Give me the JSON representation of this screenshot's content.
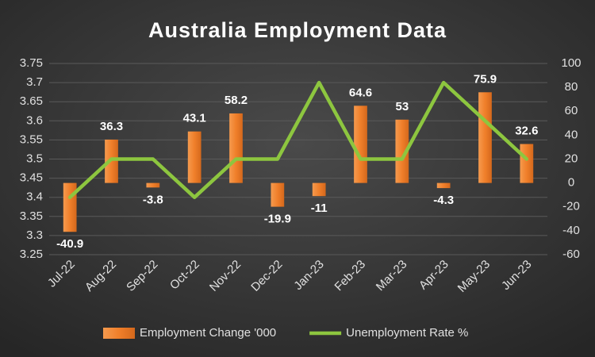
{
  "chart_data": {
    "type": "combo",
    "title": "Australia Employment Data",
    "categories": [
      "Jul-22",
      "Aug-22",
      "Sep-22",
      "Oct-22",
      "Nov-22",
      "Dec-22",
      "Jan-23",
      "Feb-23",
      "Mar-23",
      "Apr-23",
      "May-23",
      "Jun-23"
    ],
    "series": [
      {
        "name": "Employment Change '000",
        "type": "bar",
        "axis": "y2",
        "color": "#f07f2a",
        "values": [
          -40.9,
          36.3,
          -3.8,
          43.1,
          58.2,
          -19.9,
          -11,
          64.6,
          53,
          -4.3,
          75.9,
          32.6
        ]
      },
      {
        "name": "Unemployment Rate %",
        "type": "line",
        "axis": "y",
        "color": "#8dc63f",
        "values": [
          3.4,
          3.5,
          3.5,
          3.4,
          3.5,
          3.5,
          3.7,
          3.5,
          3.5,
          3.7,
          3.6,
          3.5
        ]
      }
    ],
    "ylim": [
      3.25,
      3.75
    ],
    "yticks": [
      3.25,
      3.3,
      3.35,
      3.4,
      3.45,
      3.5,
      3.55,
      3.6,
      3.65,
      3.7,
      3.75
    ],
    "y2lim": [
      -60,
      100
    ],
    "y2ticks": [
      -60,
      -40,
      -20,
      0,
      20,
      40,
      60,
      80,
      100
    ],
    "grid": true,
    "legend": "bottom"
  }
}
